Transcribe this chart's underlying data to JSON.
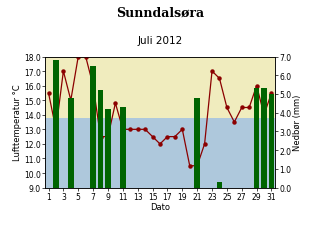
{
  "title": "Sunndalsøra",
  "subtitle": "Juli 2012",
  "xlabel": "Dato",
  "ylabel_left": "Lufttemperatur °C",
  "ylabel_right": "Nedbør (mm)",
  "days": [
    1,
    2,
    3,
    4,
    5,
    6,
    7,
    8,
    9,
    10,
    11,
    12,
    13,
    14,
    15,
    16,
    17,
    18,
    19,
    20,
    21,
    22,
    23,
    24,
    25,
    26,
    27,
    28,
    29,
    30,
    31
  ],
  "temperature": [
    15.5,
    13.0,
    17.0,
    15.0,
    18.0,
    18.0,
    16.0,
    12.5,
    12.5,
    14.8,
    13.0,
    13.0,
    13.0,
    13.0,
    12.5,
    12.0,
    12.5,
    12.5,
    13.0,
    10.5,
    10.5,
    12.0,
    17.0,
    16.5,
    14.5,
    13.5,
    14.5,
    14.5,
    16.0,
    14.0,
    15.5
  ],
  "precipitation": [
    0,
    6.8,
    0,
    4.8,
    0,
    0,
    6.5,
    5.2,
    4.2,
    0,
    4.3,
    0,
    0,
    0,
    0,
    0,
    0,
    0,
    0,
    0,
    4.8,
    0,
    0,
    0.3,
    0,
    0,
    0,
    0,
    5.3,
    5.3,
    5.0
  ],
  "temp_ylim": [
    9.0,
    18.0
  ],
  "precip_ylim": [
    0.0,
    7.0
  ],
  "temp_yticks": [
    9.0,
    10.0,
    11.0,
    12.0,
    13.0,
    14.0,
    15.0,
    16.0,
    17.0,
    18.0
  ],
  "precip_yticks": [
    0.0,
    1.0,
    2.0,
    3.0,
    4.0,
    5.0,
    6.0,
    7.0
  ],
  "xticks": [
    1,
    3,
    5,
    7,
    9,
    11,
    13,
    15,
    17,
    19,
    21,
    23,
    25,
    27,
    29,
    31
  ],
  "bar_color": "#006400",
  "line_color": "#8B0000",
  "bg_color_top": "#f0ecbe",
  "bg_color_bottom": "#aec8dc",
  "bg_split_temp": 13.8,
  "title_fontsize": 9,
  "subtitle_fontsize": 7.5,
  "tick_fontsize": 5.5,
  "axis_label_fontsize": 6,
  "fig_bg": "#ffffff"
}
